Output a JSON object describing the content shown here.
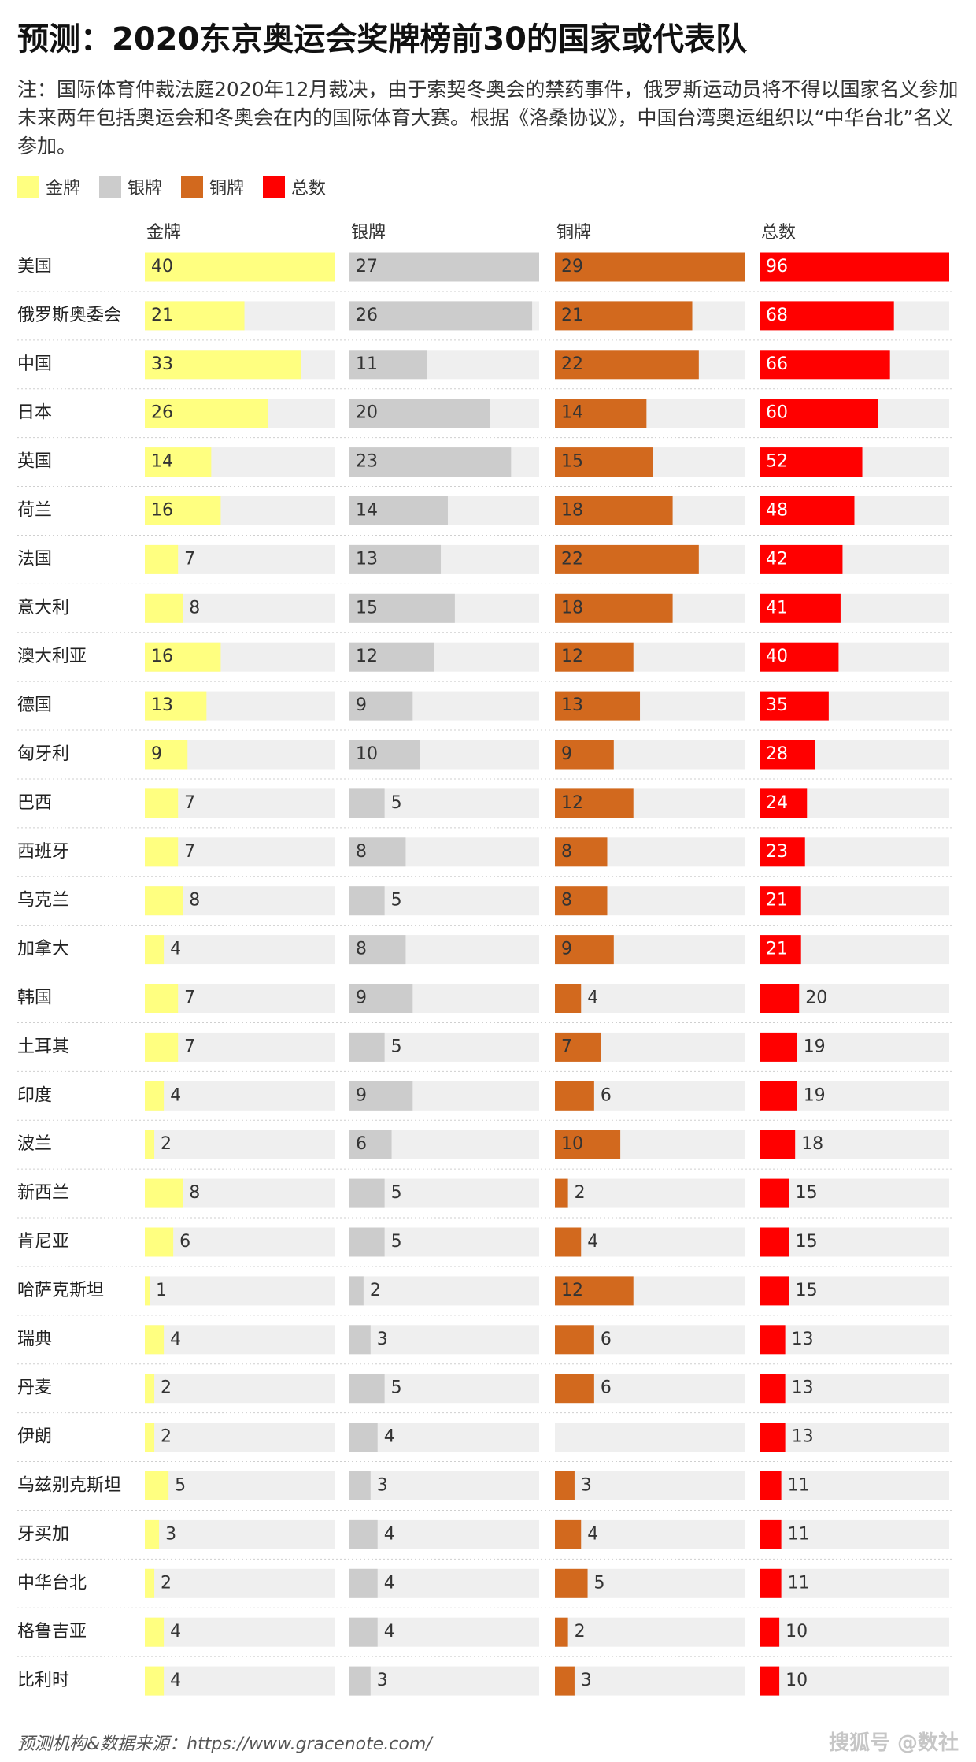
{
  "title": "预测：2020东京奥运会奖牌榜前30的国家或代表队",
  "note": "注：国际体育仲裁法庭2020年12月裁决，由于索契冬奥会的禁药事件，俄罗斯运动员将不得以国家名义参加未来两年包括奥运会和冬奥会在内的国际体育大赛。根据《洛桑协议》，中国台湾奥运组织以“中华台北”名义参加。",
  "footer": "预测机构&数据来源：https://www.gracenote.com/",
  "watermark": "搜狐号 @数社",
  "chart_data": {
    "type": "bar",
    "title": "预测：2020东京奥运会奖牌榜前30的国家或代表队",
    "categories": [
      "美国",
      "俄罗斯奥委会",
      "中国",
      "日本",
      "英国",
      "荷兰",
      "法国",
      "意大利",
      "澳大利亚",
      "德国",
      "匈牙利",
      "巴西",
      "西班牙",
      "乌克兰",
      "加拿大",
      "韩国",
      "土耳其",
      "印度",
      "波兰",
      "新西兰",
      "肯尼亚",
      "哈萨克斯坦",
      "瑞典",
      "丹麦",
      "伊朗",
      "乌兹别克斯坦",
      "牙买加",
      "中华台北",
      "格鲁吉亚",
      "比利时"
    ],
    "series": [
      {
        "name": "金牌",
        "color": "#ffff80",
        "values": [
          40,
          21,
          33,
          26,
          14,
          16,
          7,
          8,
          16,
          13,
          9,
          7,
          7,
          8,
          4,
          7,
          7,
          4,
          2,
          8,
          6,
          1,
          4,
          2,
          2,
          5,
          3,
          2,
          4,
          4
        ]
      },
      {
        "name": "银牌",
        "color": "#cccccc",
        "values": [
          27,
          26,
          11,
          20,
          23,
          14,
          13,
          15,
          12,
          9,
          10,
          5,
          8,
          5,
          8,
          9,
          5,
          9,
          6,
          5,
          5,
          2,
          3,
          5,
          4,
          3,
          4,
          4,
          4,
          3
        ]
      },
      {
        "name": "铜牌",
        "color": "#d2691e",
        "values": [
          29,
          21,
          22,
          14,
          15,
          18,
          22,
          18,
          12,
          13,
          9,
          12,
          8,
          8,
          9,
          4,
          7,
          6,
          10,
          2,
          4,
          12,
          6,
          6,
          null,
          3,
          4,
          5,
          2,
          3
        ]
      },
      {
        "name": "总数",
        "color": "#ff0000",
        "values": [
          96,
          68,
          66,
          60,
          52,
          48,
          42,
          41,
          40,
          35,
          28,
          24,
          23,
          21,
          21,
          20,
          19,
          19,
          18,
          15,
          15,
          15,
          13,
          13,
          13,
          11,
          11,
          11,
          10,
          10
        ]
      }
    ],
    "legend_position": "top-left",
    "grid": false
  }
}
